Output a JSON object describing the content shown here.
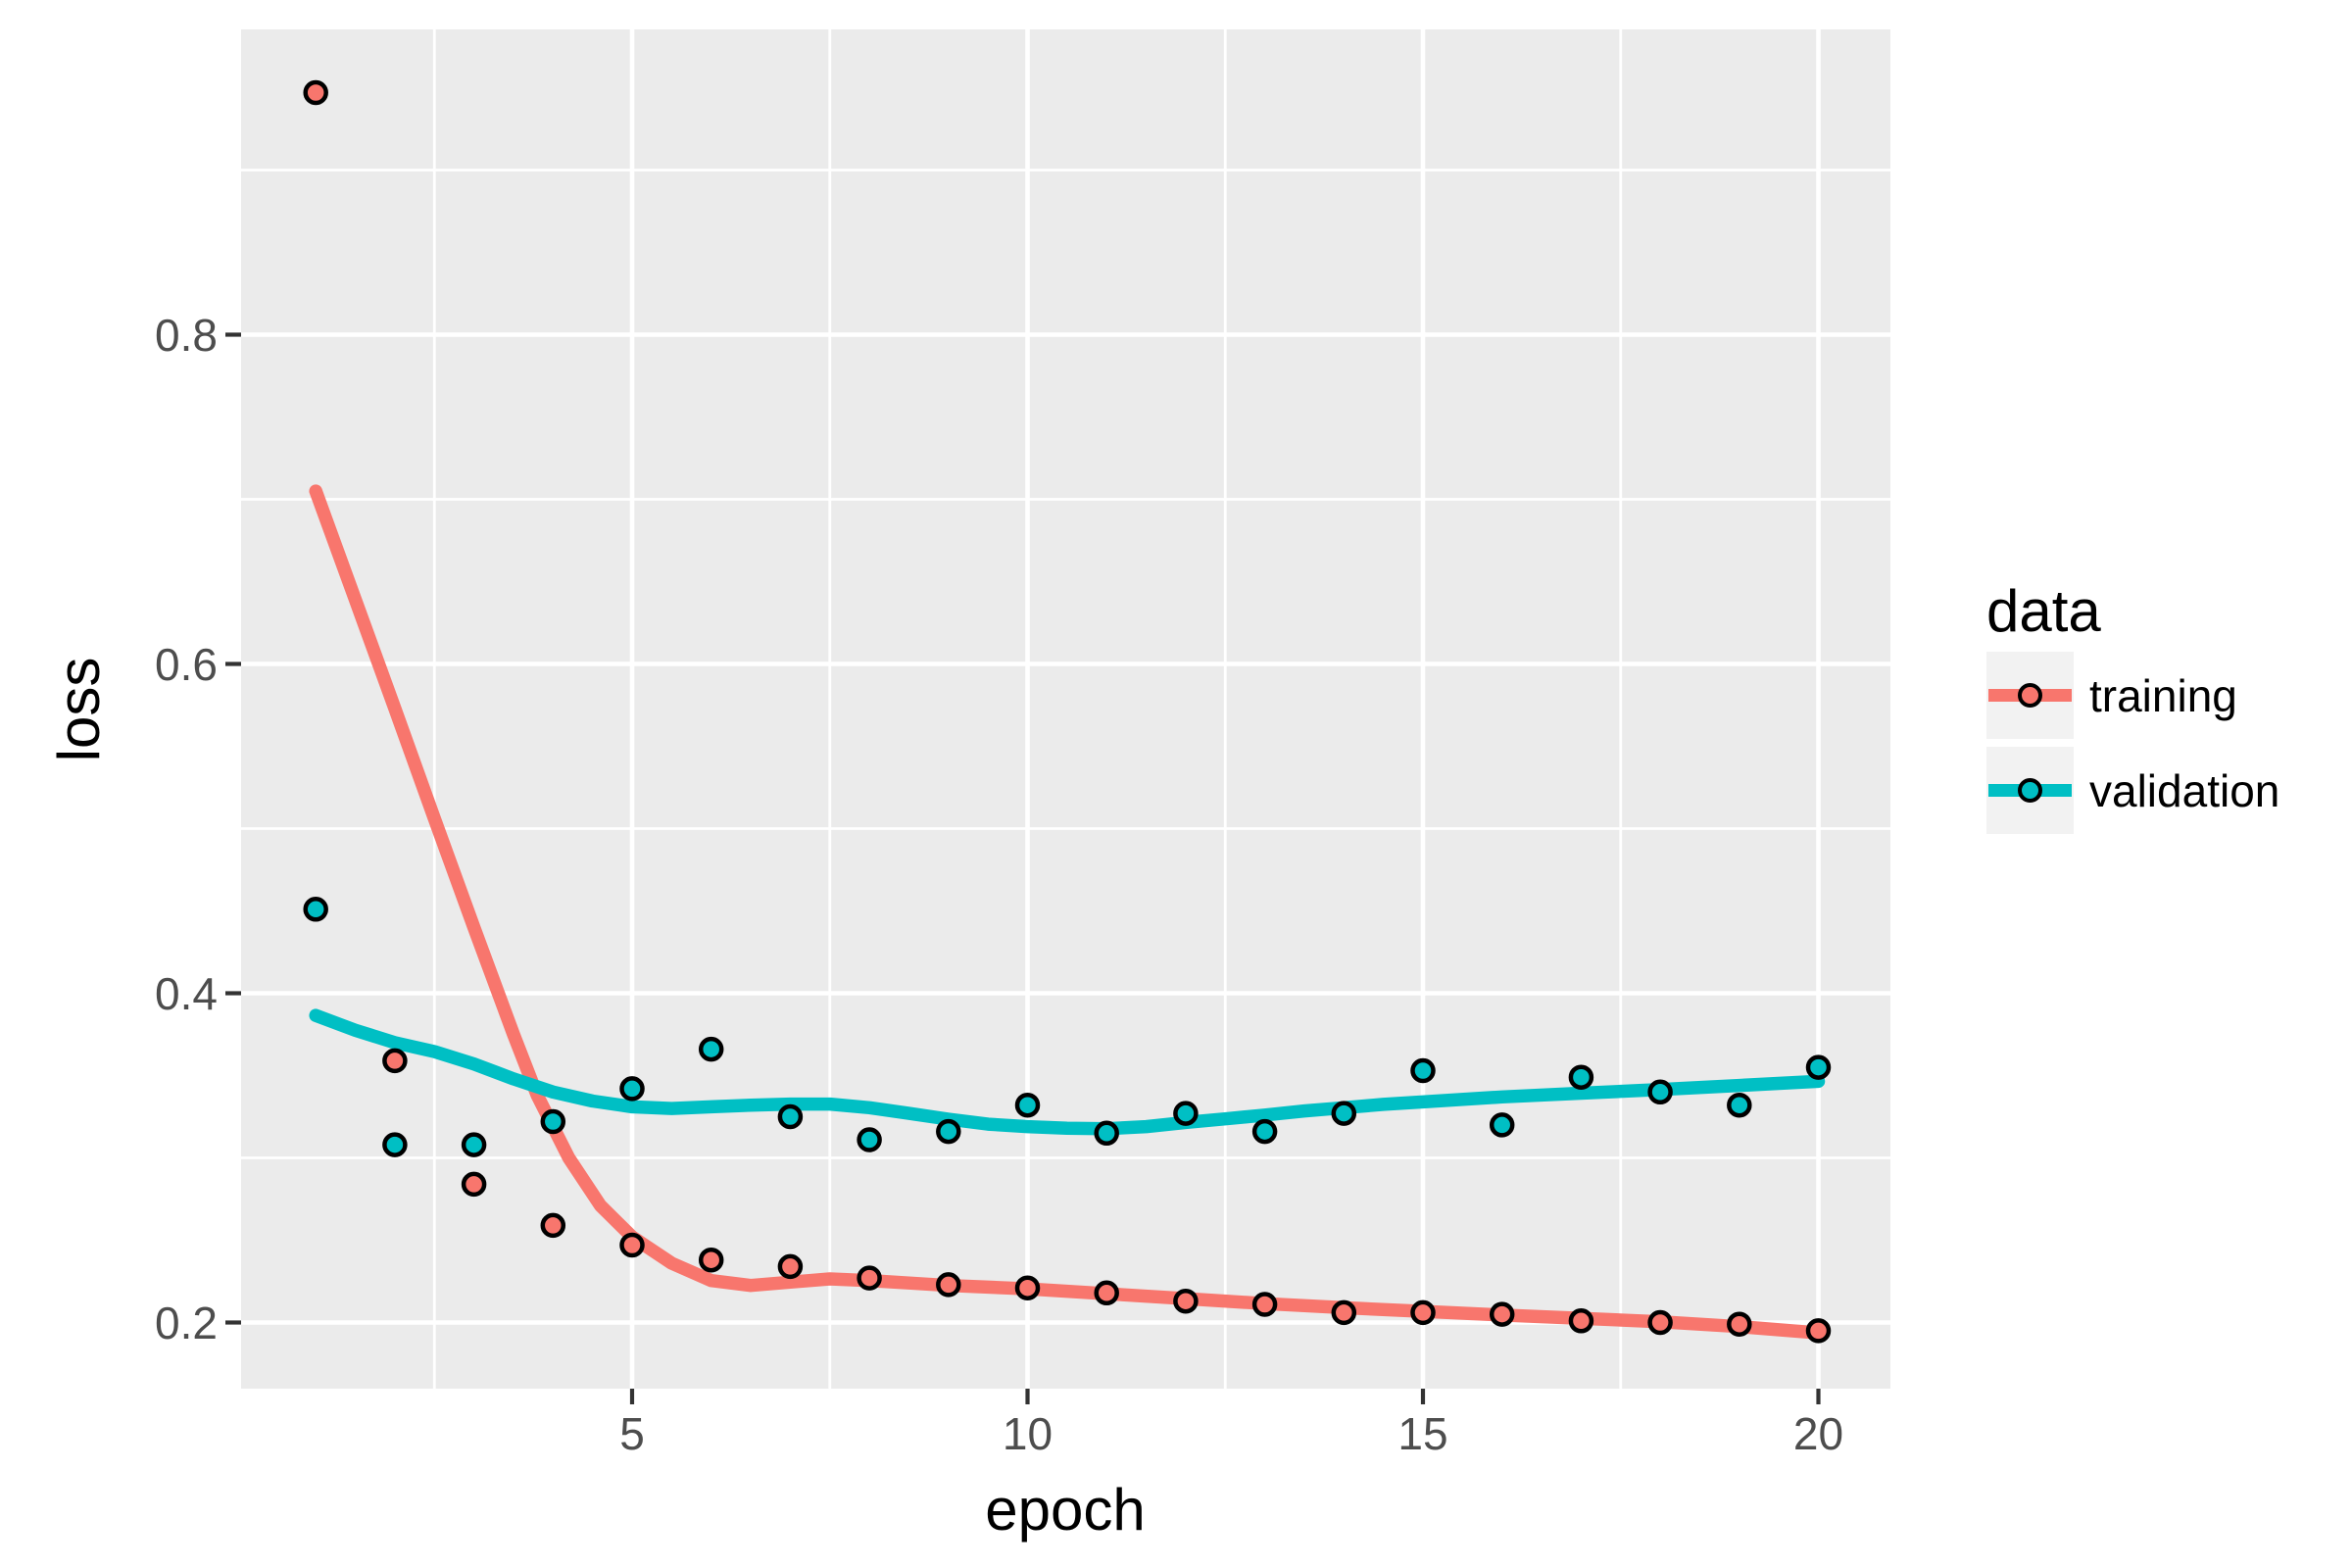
{
  "chart_data": {
    "type": "scatter",
    "xlabel": "epoch",
    "ylabel": "loss",
    "x": [
      1,
      2,
      3,
      4,
      5,
      6,
      7,
      8,
      9,
      10,
      11,
      12,
      13,
      14,
      15,
      16,
      17,
      18,
      19,
      20
    ],
    "series": [
      {
        "name": "training",
        "color": "#F8766D",
        "values": [
          0.947,
          0.359,
          0.284,
          0.259,
          0.247,
          0.238,
          0.234,
          0.227,
          0.223,
          0.221,
          0.218,
          0.213,
          0.211,
          0.206,
          0.206,
          0.205,
          0.201,
          0.2,
          0.199,
          0.195
        ]
      },
      {
        "name": "validation",
        "color": "#00BFC4",
        "values": [
          0.451,
          0.308,
          0.308,
          0.322,
          0.342,
          0.366,
          0.325,
          0.311,
          0.316,
          0.332,
          0.315,
          0.327,
          0.316,
          0.327,
          0.353,
          0.32,
          0.349,
          0.34,
          0.332,
          0.355
        ]
      }
    ],
    "smooth": [
      {
        "name": "training",
        "color": "#F8766D",
        "points": [
          [
            1,
            0.705
          ],
          [
            1.5,
            0.639
          ],
          [
            2,
            0.573
          ],
          [
            2.5,
            0.506
          ],
          [
            3,
            0.44
          ],
          [
            3.5,
            0.375
          ],
          [
            3.8,
            0.338
          ],
          [
            4.2,
            0.3
          ],
          [
            4.6,
            0.271
          ],
          [
            5,
            0.252
          ],
          [
            5.5,
            0.236
          ],
          [
            6,
            0.2255
          ],
          [
            6.5,
            0.2225
          ],
          [
            7,
            0.2245
          ],
          [
            7.5,
            0.2265
          ],
          [
            8,
            0.2255
          ],
          [
            8.5,
            0.224
          ],
          [
            9,
            0.2225
          ],
          [
            9.5,
            0.2215
          ],
          [
            10,
            0.2205
          ],
          [
            11,
            0.2175
          ],
          [
            12,
            0.2145
          ],
          [
            13,
            0.2115
          ],
          [
            14,
            0.209
          ],
          [
            15,
            0.2068
          ],
          [
            16,
            0.2045
          ],
          [
            17,
            0.2025
          ],
          [
            18,
            0.2005
          ],
          [
            19,
            0.1975
          ],
          [
            20,
            0.1937
          ]
        ]
      },
      {
        "name": "validation",
        "color": "#00BFC4",
        "points": [
          [
            1,
            0.3865
          ],
          [
            1.5,
            0.3775
          ],
          [
            2,
            0.37
          ],
          [
            2.5,
            0.3645
          ],
          [
            3,
            0.357
          ],
          [
            3.5,
            0.348
          ],
          [
            4,
            0.34
          ],
          [
            4.5,
            0.3345
          ],
          [
            5,
            0.331
          ],
          [
            5.5,
            0.33
          ],
          [
            6,
            0.331
          ],
          [
            6.5,
            0.332
          ],
          [
            7,
            0.3327
          ],
          [
            7.5,
            0.3327
          ],
          [
            8,
            0.3305
          ],
          [
            8.5,
            0.327
          ],
          [
            9,
            0.3235
          ],
          [
            9.5,
            0.3205
          ],
          [
            10,
            0.319
          ],
          [
            10.5,
            0.318
          ],
          [
            11,
            0.3177
          ],
          [
            11.5,
            0.319
          ],
          [
            12,
            0.3215
          ],
          [
            12.5,
            0.3237
          ],
          [
            13,
            0.326
          ],
          [
            13.5,
            0.3285
          ],
          [
            14,
            0.3305
          ],
          [
            14.5,
            0.3325
          ],
          [
            15,
            0.334
          ],
          [
            16,
            0.337
          ],
          [
            17,
            0.3393
          ],
          [
            18,
            0.3415
          ],
          [
            19,
            0.344
          ],
          [
            20,
            0.3465
          ]
        ]
      }
    ],
    "x_ticks": [
      5,
      10,
      15,
      20
    ],
    "x_tick_labels": [
      "5",
      "10",
      "15",
      "20"
    ],
    "y_ticks": [
      0.2,
      0.4,
      0.6,
      0.8
    ],
    "y_tick_labels": [
      "0.2",
      "0.4",
      "0.6",
      "0.8"
    ],
    "x_minor": [
      2.5,
      7.5,
      12.5,
      17.5
    ],
    "y_minor": [
      0.3,
      0.5,
      0.7,
      0.9
    ],
    "xlim": [
      0.06,
      20.91
    ],
    "ylim": [
      0.16,
      0.985
    ],
    "grid": true,
    "legend": {
      "title": "data",
      "position": "right",
      "entries": [
        "training",
        "validation"
      ]
    }
  },
  "style": {
    "panel_bg": "#EBEBEB",
    "grid_color": "#FFFFFF",
    "tick_color": "#333333",
    "axis_text_color": "#4D4D4D",
    "title_color": "#000000",
    "legend_key_bg": "#F2F2F2",
    "point_stroke": "#000000"
  }
}
